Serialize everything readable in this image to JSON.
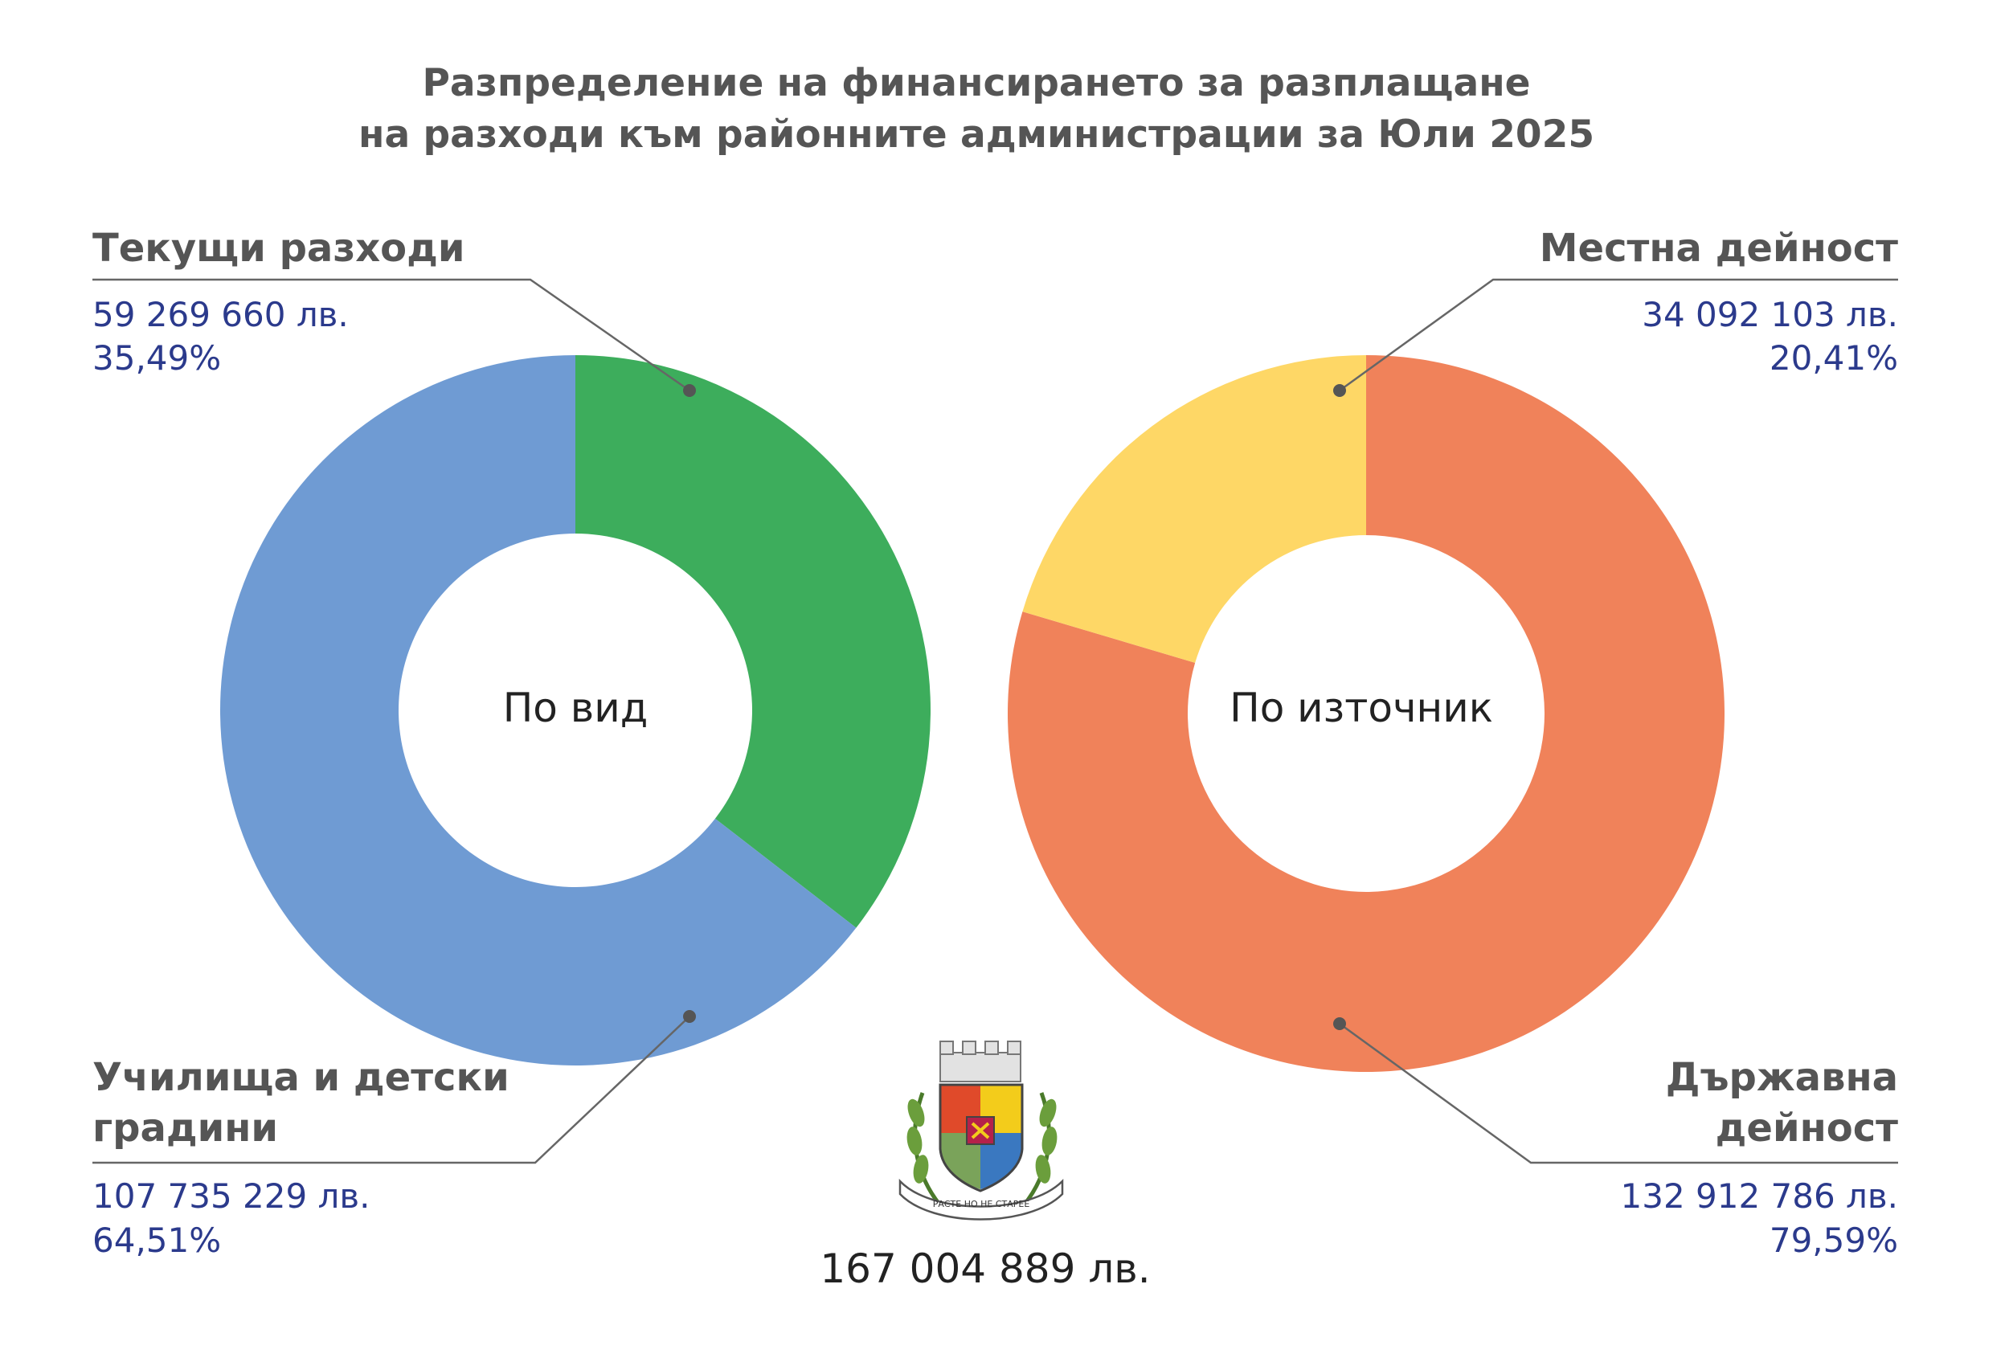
{
  "title": {
    "line1": "Разпределение на финансирането за разплащане",
    "line2": "на разходи към районните администрации за Юли 2025"
  },
  "total": "167 004 889 лв.",
  "logo": {
    "icon": "sofia-coat-of-arms",
    "motto": "РАСТЕ НО НЕ СТАРЕЕ"
  },
  "chart_data": [
    {
      "type": "pie",
      "center_label": "По вид",
      "start_angle": 0,
      "slices": [
        {
          "name": "Текущи разходи",
          "amount": 59269660,
          "amount_text": "59 269 660 лв.",
          "percent": 35.49,
          "percent_text": "35,49%",
          "color": "#3dad5c"
        },
        {
          "name": "Училища и детски градини",
          "amount": 107735229,
          "amount_text": "107 735 229 лв.",
          "percent": 64.51,
          "percent_text": "64,51%",
          "color": "#6f9bd3"
        }
      ]
    },
    {
      "type": "pie",
      "center_label": "По източник",
      "start_angle": 0,
      "slices": [
        {
          "name": "Държавна дейност",
          "amount": 132912786,
          "amount_text": "132 912 786 лв.",
          "percent": 79.59,
          "percent_text": "79,59%",
          "color": "#f0825a"
        },
        {
          "name": "Местна дейност",
          "amount": 34092103,
          "amount_text": "34 092 103 лв.",
          "percent": 20.41,
          "percent_text": "20,41%",
          "color": "#fed766"
        }
      ]
    }
  ],
  "labels": {
    "left_top": {
      "name_lines": [
        "Текущи разходи"
      ],
      "amount": "59 269 660 лв.",
      "percent": "35,49%"
    },
    "left_bottom": {
      "name_lines": [
        "Училища и детски",
        "градини"
      ],
      "amount": "107 735 229 лв.",
      "percent": "64,51%"
    },
    "right_top": {
      "name_lines": [
        "Местна дейност"
      ],
      "amount": "34 092 103 лв.",
      "percent": "20,41%"
    },
    "right_bottom": {
      "name_lines": [
        "Държавна",
        "дейност"
      ],
      "amount": "132 912 786 лв.",
      "percent": "79,59%"
    }
  }
}
